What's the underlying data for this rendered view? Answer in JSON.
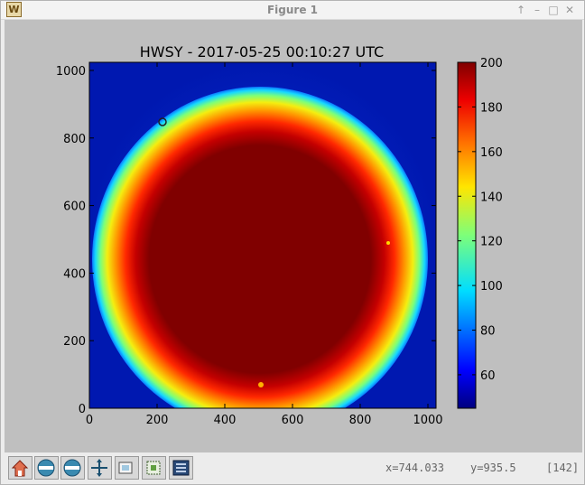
{
  "window": {
    "title": "Figure 1",
    "app_icon_glyph": "W",
    "controls": [
      "up-icon",
      "minimize-icon",
      "maximize-icon",
      "close-icon"
    ]
  },
  "chart_data": {
    "type": "heatmap",
    "title": "HWSY - 2017-05-25 00:10:27 UTC",
    "xlabel": "",
    "ylabel": "",
    "xlim": [
      0,
      1024
    ],
    "ylim": [
      0,
      1024
    ],
    "xticks": [
      0,
      200,
      400,
      600,
      800,
      1000
    ],
    "yticks": [
      0,
      200,
      400,
      600,
      800,
      1000
    ],
    "colorbar": {
      "colormap": "jet",
      "range": [
        45,
        200
      ],
      "ticks": [
        60,
        80,
        100,
        120,
        140,
        160,
        180,
        200
      ]
    },
    "grid": false
  },
  "toolbar": {
    "buttons": [
      {
        "name": "home-icon"
      },
      {
        "name": "back-icon"
      },
      {
        "name": "forward-icon"
      },
      {
        "name": "pan-icon"
      },
      {
        "name": "zoom-icon"
      },
      {
        "name": "subplots-icon"
      },
      {
        "name": "save-icon"
      }
    ]
  },
  "status": {
    "x_readout": "x=744.033",
    "y_readout": "y=935.5",
    "value_readout": "[142]"
  }
}
